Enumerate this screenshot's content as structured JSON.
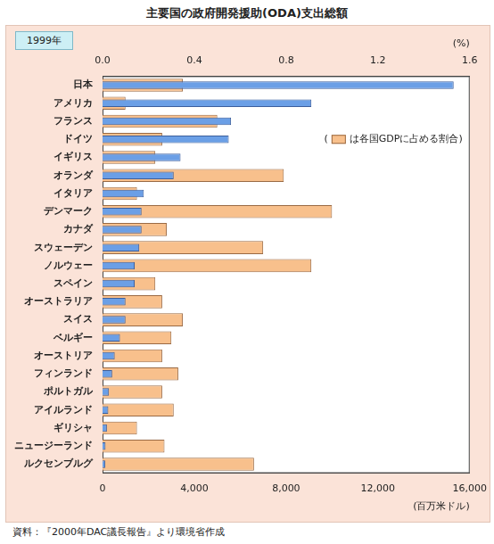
{
  "chart_data": {
    "type": "bar",
    "orientation": "horizontal",
    "title": "主要国の政府開発援助(ODA)支出総額",
    "subtitle": "1999年",
    "y_label": "(百万米ドル)",
    "y2_label": "(%)",
    "categories": [
      "日本",
      "アメリカ",
      "フランス",
      "ドイツ",
      "イギリス",
      "オランダ",
      "イタリア",
      "デンマーク",
      "カナダ",
      "スウェーデン",
      "ノルウェー",
      "スペイン",
      "オーストラリア",
      "スイス",
      "ベルギー",
      "オーストリア",
      "フィンランド",
      "ポルトガル",
      "アイルランド",
      "ギリシャ",
      "ニュージーランド",
      "ルクセンブルグ"
    ],
    "series": [
      {
        "color": "#6b9fe6",
        "values": [
          15300,
          9100,
          5600,
          5500,
          3400,
          3100,
          1800,
          1700,
          1700,
          1600,
          1400,
          1400,
          1000,
          1000,
          760,
          530,
          420,
          280,
          250,
          190,
          130,
          120
        ]
      },
      {
        "name": "は各国GDPに占める割合",
        "color": "#f8c08c",
        "axis": "y2",
        "values": [
          0.35,
          0.1,
          0.5,
          0.26,
          0.23,
          0.79,
          0.15,
          1.0,
          0.28,
          0.7,
          0.91,
          0.23,
          0.26,
          0.35,
          0.3,
          0.26,
          0.33,
          0.26,
          0.31,
          0.15,
          0.27,
          0.66
        ]
      }
    ],
    "ylim": [
      0,
      16000
    ],
    "yticks": [
      0,
      {
        "value": 4000,
        "label": "4,000"
      },
      {
        "value": 8000,
        "label": "8,000"
      },
      {
        "value": 12000,
        "label": "12,000"
      },
      {
        "value": 16000,
        "label": "16,000"
      }
    ],
    "y2lim": [
      0,
      1.6
    ],
    "y2ticks": [
      {
        "value": 0,
        "label": "0.0"
      },
      0.4,
      0.8,
      1.2,
      1.6
    ],
    "grid": false,
    "annotations": {
      "source": "資料：『2000年DAC議長報告』より環境省作成",
      "legend_brackets": [
        "(",
        ")"
      ]
    }
  }
}
